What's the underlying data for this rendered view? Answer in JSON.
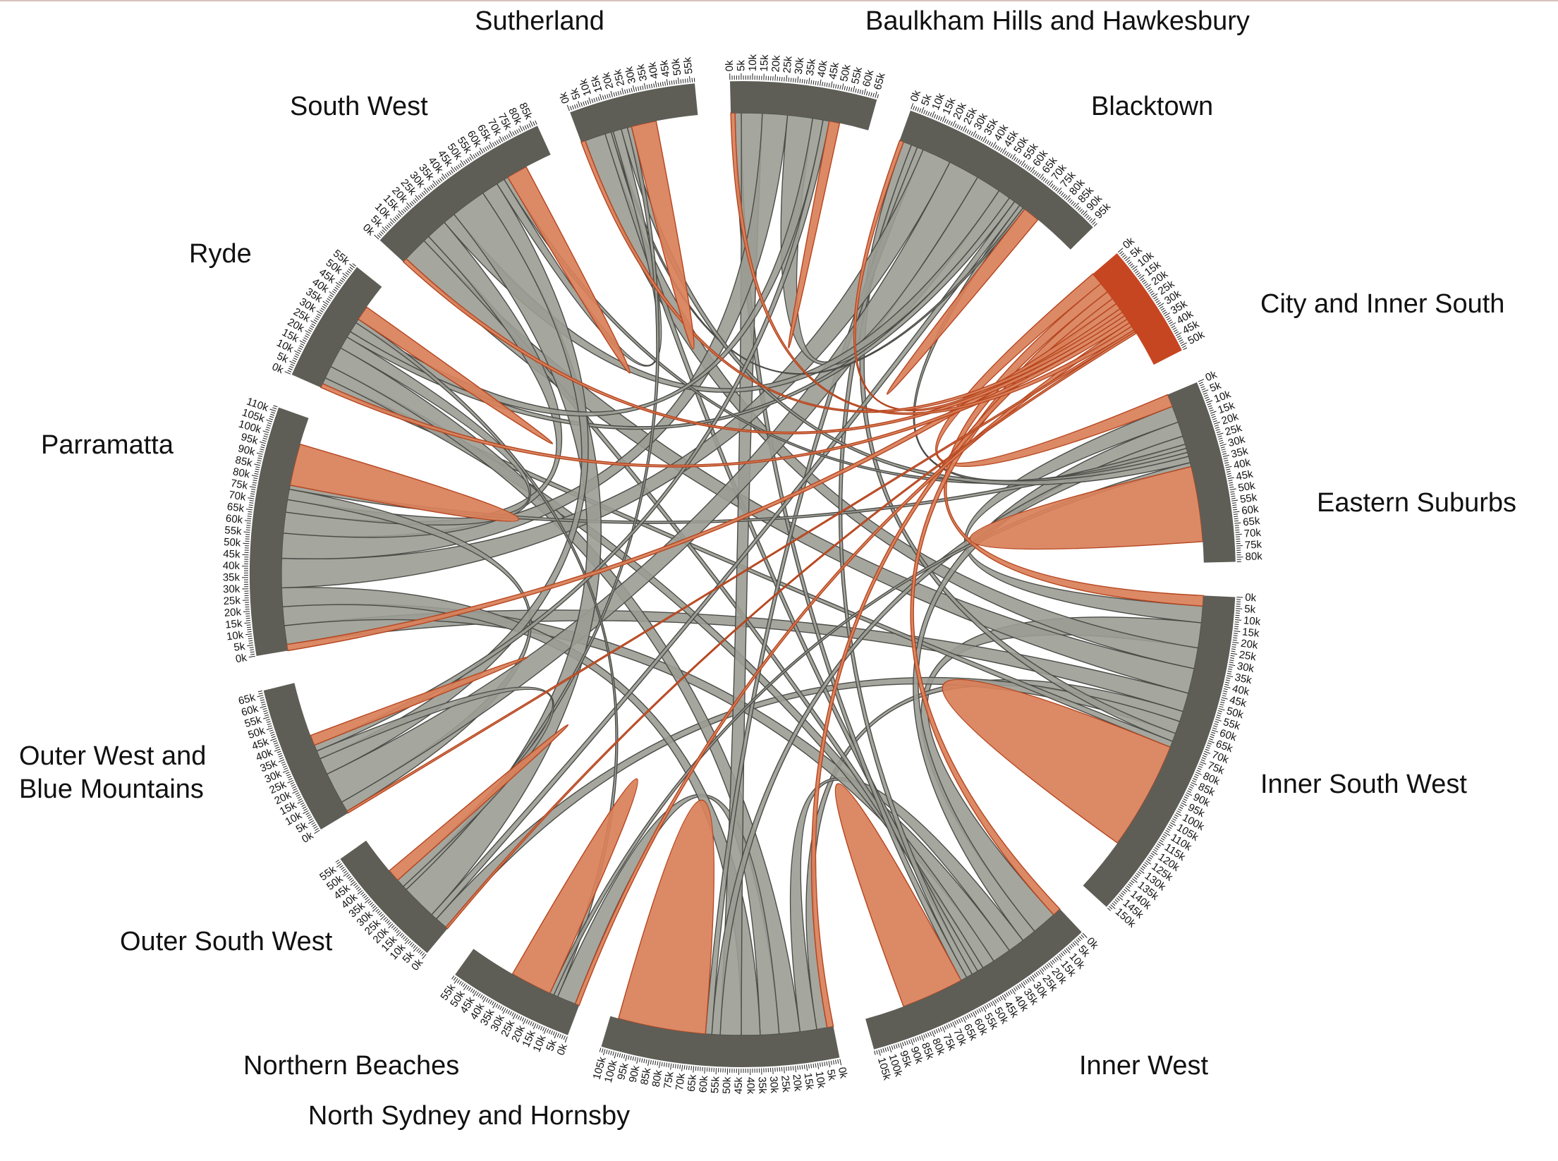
{
  "chart_data": {
    "type": "chord",
    "title": "",
    "tick_step": 5,
    "tick_unit_suffix": "k",
    "colors": {
      "group_arc": "#5e5e57",
      "ribbon_gray": "#9b9c94",
      "ribbon_gray_stroke": "#4b4c47",
      "ribbon_orange": "#d9805a",
      "ribbon_orange_stroke": "#b5451e",
      "highlight_arc": "#c74622"
    },
    "highlighted_group": "City and Inner South",
    "groups": [
      {
        "name": "Sutherland",
        "total": 57,
        "max_tick_label": "55k"
      },
      {
        "name": "Baulkham Hills and Hawkesbury",
        "total": 66,
        "max_tick_label": "65k"
      },
      {
        "name": "Blacktown",
        "total": 97,
        "max_tick_label": "95k"
      },
      {
        "name": "City and Inner South",
        "total": 52,
        "max_tick_label": "50k"
      },
      {
        "name": "Eastern Suburbs",
        "total": 82,
        "max_tick_label": "80k"
      },
      {
        "name": "Inner South West",
        "total": 152,
        "max_tick_label": "150k"
      },
      {
        "name": "Inner West",
        "total": 107,
        "max_tick_label": "105k"
      },
      {
        "name": "North Sydney and Hornsby",
        "total": 107,
        "max_tick_label": "105k"
      },
      {
        "name": "Northern Beaches",
        "total": 57,
        "max_tick_label": "55k"
      },
      {
        "name": "Outer South West",
        "total": 57,
        "max_tick_label": "55k"
      },
      {
        "name": "Outer West and\nBlue Mountains",
        "total": 67,
        "max_tick_label": "65k"
      },
      {
        "name": "Parramatta",
        "total": 112,
        "max_tick_label": "110k"
      },
      {
        "name": "Ryde",
        "total": 56,
        "max_tick_label": "55k"
      },
      {
        "name": "South West",
        "total": 87,
        "max_tick_label": "85k"
      }
    ],
    "self_flows": [
      {
        "group": "Sutherland",
        "value": 12
      },
      {
        "group": "Baulkham Hills and Hawkesbury",
        "value": 5
      },
      {
        "group": "Blacktown",
        "value": 8
      },
      {
        "group": "Eastern Suburbs",
        "value": 36
      },
      {
        "group": "Inner South West",
        "value": 52
      },
      {
        "group": "Inner West",
        "value": 30
      },
      {
        "group": "North Sydney and Hornsby",
        "value": 42
      },
      {
        "group": "Northern Beaches",
        "value": 20
      },
      {
        "group": "Outer South West",
        "value": 6
      },
      {
        "group": "Outer West and\nBlue Mountains",
        "value": 5
      },
      {
        "group": "Parramatta",
        "value": 20
      },
      {
        "group": "Ryde",
        "value": 7
      },
      {
        "group": "South West",
        "value": 10
      }
    ],
    "flows": [
      {
        "source": "City and Inner South",
        "target": "Eastern Suburbs",
        "value": 6
      },
      {
        "source": "City and Inner South",
        "target": "Inner South West",
        "value": 5
      },
      {
        "source": "City and Inner South",
        "target": "Inner West",
        "value": 4
      },
      {
        "source": "City and Inner South",
        "target": "North Sydney and Hornsby",
        "value": 3
      },
      {
        "source": "City and Inner South",
        "target": "Parramatta",
        "value": 3
      },
      {
        "source": "City and Inner South",
        "target": "Blacktown",
        "value": 2
      },
      {
        "source": "City and Inner South",
        "target": "Sutherland",
        "value": 2
      },
      {
        "source": "City and Inner South",
        "target": "South West",
        "value": 2
      },
      {
        "source": "City and Inner South",
        "target": "Ryde",
        "value": 2
      },
      {
        "source": "City and Inner South",
        "target": "Northern Beaches",
        "value": 2
      },
      {
        "source": "City and Inner South",
        "target": "Baulkham Hills and Hawkesbury",
        "value": 2
      },
      {
        "source": "City and Inner South",
        "target": "Outer West and\nBlue Mountains",
        "value": 1
      },
      {
        "source": "City and Inner South",
        "target": "Outer South West",
        "value": 1
      },
      {
        "source": "Inner South West",
        "target": "Eastern Suburbs",
        "value": 8
      },
      {
        "source": "Inner South West",
        "target": "Inner West",
        "value": 12
      },
      {
        "source": "Inner South West",
        "target": "Sutherland",
        "value": 10
      },
      {
        "source": "Inner South West",
        "target": "South West",
        "value": 12
      },
      {
        "source": "Inner South West",
        "target": "Parramatta",
        "value": 9
      },
      {
        "source": "Inner South West",
        "target": "North Sydney and Hornsby",
        "value": 5
      },
      {
        "source": "Inner South West",
        "target": "Outer South West",
        "value": 6
      },
      {
        "source": "Inner South West",
        "target": "Blacktown",
        "value": 4
      },
      {
        "source": "Inner South West",
        "target": "Ryde",
        "value": 3
      },
      {
        "source": "Inner West",
        "target": "Eastern Suburbs",
        "value": 7
      },
      {
        "source": "Inner West",
        "target": "North Sydney and Hornsby",
        "value": 8
      },
      {
        "source": "Inner West",
        "target": "Parramatta",
        "value": 9
      },
      {
        "source": "Inner West",
        "target": "Ryde",
        "value": 6
      },
      {
        "source": "Inner West",
        "target": "South West",
        "value": 3
      },
      {
        "source": "Inner West",
        "target": "Sutherland",
        "value": 3
      },
      {
        "source": "Inner West",
        "target": "Blacktown",
        "value": 3
      },
      {
        "source": "Inner West",
        "target": "Baulkham Hills and Hawkesbury",
        "value": 3
      },
      {
        "source": "North Sydney and Hornsby",
        "target": "Ryde",
        "value": 10
      },
      {
        "source": "North Sydney and Hornsby",
        "target": "Northern Beaches",
        "value": 9
      },
      {
        "source": "North Sydney and Hornsby",
        "target": "Parramatta",
        "value": 9
      },
      {
        "source": "North Sydney and Hornsby",
        "target": "Baulkham Hills and Hawkesbury",
        "value": 10
      },
      {
        "source": "North Sydney and Hornsby",
        "target": "Eastern Suburbs",
        "value": 4
      },
      {
        "source": "North Sydney and Hornsby",
        "target": "Blacktown",
        "value": 3
      },
      {
        "source": "Parramatta",
        "target": "Blacktown",
        "value": 14
      },
      {
        "source": "Parramatta",
        "target": "Baulkham Hills and Hawkesbury",
        "value": 12
      },
      {
        "source": "Parramatta",
        "target": "South West",
        "value": 10
      },
      {
        "source": "Parramatta",
        "target": "Ryde",
        "value": 6
      },
      {
        "source": "Parramatta",
        "target": "Outer West and\nBlue Mountains",
        "value": 5
      },
      {
        "source": "Parramatta",
        "target": "Eastern Suburbs",
        "value": 2
      },
      {
        "source": "Blacktown",
        "target": "Outer West and\nBlue Mountains",
        "value": 15
      },
      {
        "source": "Blacktown",
        "target": "Baulkham Hills and Hawkesbury",
        "value": 12
      },
      {
        "source": "Blacktown",
        "target": "South West",
        "value": 6
      },
      {
        "source": "Blacktown",
        "target": "Ryde",
        "value": 3
      },
      {
        "source": "Blacktown",
        "target": "Outer South West",
        "value": 3
      },
      {
        "source": "Blacktown",
        "target": "Eastern Suburbs",
        "value": 2
      },
      {
        "source": "Blacktown",
        "target": "Sutherland",
        "value": 1
      },
      {
        "source": "South West",
        "target": "Outer South West",
        "value": 17
      },
      {
        "source": "South West",
        "target": "Outer West and\nBlue Mountains",
        "value": 8
      },
      {
        "source": "South West",
        "target": "Sutherland",
        "value": 4
      },
      {
        "source": "South West",
        "target": "Eastern Suburbs",
        "value": 2
      },
      {
        "source": "Sutherland",
        "target": "Eastern Suburbs",
        "value": 3
      },
      {
        "source": "Sutherland",
        "target": "Outer South West",
        "value": 2
      },
      {
        "source": "Ryde",
        "target": "Baulkham Hills and Hawkesbury",
        "value": 5
      },
      {
        "source": "Ryde",
        "target": "Northern Beaches",
        "value": 2
      },
      {
        "source": "Outer West and\nBlue Mountains",
        "target": "Outer South West",
        "value": 4
      },
      {
        "source": "Outer West and\nBlue Mountains",
        "target": "Baulkham Hills and Hawkesbury",
        "value": 3
      },
      {
        "source": "Northern Beaches",
        "target": "Eastern Suburbs",
        "value": 2
      }
    ]
  }
}
